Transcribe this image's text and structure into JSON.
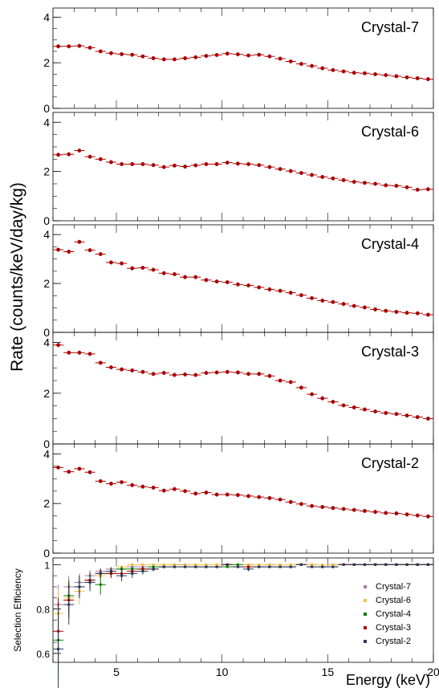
{
  "figure": {
    "ylabel": "Rate (counts/keV/day/kg)",
    "xlabel": "Energy (keV)",
    "eff_ylabel": "Selection Efficiency"
  },
  "chart_data": [
    {
      "type": "scatter",
      "title": "Crystal-7",
      "xlim": [
        2,
        20
      ],
      "ylim": [
        0,
        4.4
      ],
      "x_ticks": [],
      "y_ticks": [
        0,
        2,
        4
      ],
      "color": "#aa0000",
      "series": [
        {
          "x": [
            2.25,
            2.75,
            3.25,
            3.75,
            4.25,
            4.75,
            5.25,
            5.75,
            6.25,
            6.75,
            7.25,
            7.75,
            8.25,
            8.75,
            9.25,
            9.75,
            10.25,
            10.75,
            11.25,
            11.75,
            12.25,
            12.75,
            13.25,
            13.75,
            14.25,
            14.75,
            15.25,
            15.75,
            16.25,
            16.75,
            17.25,
            17.75,
            18.25,
            18.75,
            19.25,
            19.75
          ],
          "y": [
            2.72,
            2.72,
            2.74,
            2.66,
            2.5,
            2.42,
            2.38,
            2.35,
            2.28,
            2.2,
            2.15,
            2.15,
            2.2,
            2.24,
            2.3,
            2.34,
            2.4,
            2.37,
            2.32,
            2.35,
            2.28,
            2.18,
            2.06,
            1.95,
            1.86,
            1.76,
            1.68,
            1.62,
            1.56,
            1.54,
            1.5,
            1.46,
            1.41,
            1.36,
            1.32,
            1.28
          ]
        }
      ]
    },
    {
      "type": "scatter",
      "title": "Crystal-6",
      "xlim": [
        2,
        20
      ],
      "ylim": [
        0,
        4.4
      ],
      "x_ticks": [],
      "y_ticks": [
        0,
        2,
        4
      ],
      "color": "#aa0000",
      "series": [
        {
          "x": [
            2.25,
            2.75,
            3.25,
            3.75,
            4.25,
            4.75,
            5.25,
            5.75,
            6.25,
            6.75,
            7.25,
            7.75,
            8.25,
            8.75,
            9.25,
            9.75,
            10.25,
            10.75,
            11.25,
            11.75,
            12.25,
            12.75,
            13.25,
            13.75,
            14.25,
            14.75,
            15.25,
            15.75,
            16.25,
            16.75,
            17.25,
            17.75,
            18.25,
            18.75,
            19.25,
            19.75
          ],
          "y": [
            2.68,
            2.7,
            2.85,
            2.6,
            2.5,
            2.38,
            2.3,
            2.3,
            2.3,
            2.26,
            2.18,
            2.24,
            2.2,
            2.25,
            2.3,
            2.3,
            2.36,
            2.32,
            2.3,
            2.26,
            2.18,
            2.1,
            2.02,
            1.94,
            1.86,
            1.78,
            1.72,
            1.65,
            1.58,
            1.54,
            1.5,
            1.44,
            1.42,
            1.36,
            1.26,
            1.28
          ]
        }
      ]
    },
    {
      "type": "scatter",
      "title": "Crystal-4",
      "xlim": [
        2,
        20
      ],
      "ylim": [
        0,
        4.4
      ],
      "x_ticks": [],
      "y_ticks": [
        0,
        2,
        4
      ],
      "color": "#aa0000",
      "series": [
        {
          "x": [
            2.25,
            2.75,
            3.25,
            3.75,
            4.25,
            4.75,
            5.25,
            5.75,
            6.25,
            6.75,
            7.25,
            7.75,
            8.25,
            8.75,
            9.25,
            9.75,
            10.25,
            10.75,
            11.25,
            11.75,
            12.25,
            12.75,
            13.25,
            13.75,
            14.25,
            14.75,
            15.25,
            15.75,
            16.25,
            16.75,
            17.25,
            17.75,
            18.25,
            18.75,
            19.25,
            19.75
          ],
          "y": [
            3.38,
            3.3,
            3.7,
            3.36,
            3.2,
            2.86,
            2.82,
            2.62,
            2.64,
            2.56,
            2.42,
            2.38,
            2.26,
            2.26,
            2.14,
            2.08,
            2.05,
            1.96,
            1.92,
            1.84,
            1.76,
            1.7,
            1.62,
            1.52,
            1.4,
            1.3,
            1.24,
            1.16,
            1.08,
            1.02,
            0.94,
            0.88,
            0.84,
            0.8,
            0.78,
            0.72
          ]
        }
      ]
    },
    {
      "type": "scatter",
      "title": "Crystal-3",
      "xlim": [
        2,
        20
      ],
      "ylim": [
        0,
        4.4
      ],
      "x_ticks": [],
      "y_ticks": [
        0,
        2,
        4
      ],
      "color": "#aa0000",
      "series": [
        {
          "x": [
            2.25,
            2.75,
            3.25,
            3.75,
            4.25,
            4.75,
            5.25,
            5.75,
            6.25,
            6.75,
            7.25,
            7.75,
            8.25,
            8.75,
            9.25,
            9.75,
            10.25,
            10.75,
            11.25,
            11.75,
            12.25,
            12.75,
            13.25,
            13.75,
            14.25,
            14.75,
            15.25,
            15.75,
            16.25,
            16.75,
            17.25,
            17.75,
            18.25,
            18.75,
            19.25,
            19.75
          ],
          "y": [
            3.9,
            3.6,
            3.6,
            3.55,
            3.2,
            3.02,
            2.94,
            2.9,
            2.84,
            2.76,
            2.8,
            2.72,
            2.74,
            2.72,
            2.8,
            2.82,
            2.84,
            2.82,
            2.76,
            2.76,
            2.68,
            2.5,
            2.44,
            2.22,
            1.96,
            1.8,
            1.66,
            1.52,
            1.44,
            1.36,
            1.28,
            1.22,
            1.18,
            1.12,
            1.06,
            1.0
          ]
        }
      ]
    },
    {
      "type": "scatter",
      "title": "Crystal-2",
      "xlim": [
        2,
        20
      ],
      "ylim": [
        0,
        4.4
      ],
      "x_ticks": [],
      "y_ticks": [
        0,
        2,
        4
      ],
      "color": "#aa0000",
      "series": [
        {
          "x": [
            2.25,
            2.75,
            3.25,
            3.75,
            4.25,
            4.75,
            5.25,
            5.75,
            6.25,
            6.75,
            7.25,
            7.75,
            8.25,
            8.75,
            9.25,
            9.75,
            10.25,
            10.75,
            11.25,
            11.75,
            12.25,
            12.75,
            13.25,
            13.75,
            14.25,
            14.75,
            15.25,
            15.75,
            16.25,
            16.75,
            17.25,
            17.75,
            18.25,
            18.75,
            19.25,
            19.75
          ],
          "y": [
            3.45,
            3.28,
            3.4,
            3.26,
            2.9,
            2.8,
            2.86,
            2.74,
            2.68,
            2.64,
            2.52,
            2.58,
            2.5,
            2.4,
            2.44,
            2.36,
            2.36,
            2.34,
            2.3,
            2.26,
            2.22,
            2.16,
            2.06,
            1.98,
            1.9,
            1.86,
            1.82,
            1.78,
            1.74,
            1.7,
            1.66,
            1.62,
            1.6,
            1.56,
            1.52,
            1.48
          ]
        }
      ]
    },
    {
      "type": "scatter",
      "title": "",
      "xlabel": "Energy (keV)",
      "ylabel": "Selection Efficiency",
      "xlim": [
        2,
        20
      ],
      "ylim": [
        0.56,
        1.03
      ],
      "x_ticks": [
        5,
        10,
        15,
        20
      ],
      "y_ticks": [
        0.6,
        0.8,
        1
      ],
      "legend_position": "bottom-right",
      "series": [
        {
          "name": "Crystal-7",
          "color": "#a080a0",
          "x": [
            2.25,
            2.75,
            3.25,
            3.75,
            4.25,
            4.75,
            5.25,
            5.75,
            6.25,
            6.75,
            7.25,
            7.75,
            8.25,
            8.75,
            9.25,
            9.75,
            10.25,
            10.75,
            11.25,
            11.75,
            12.25,
            12.75,
            13.25,
            13.75,
            14.25,
            14.75,
            15.25,
            15.75,
            16.25,
            16.75,
            17.25,
            17.75,
            18.25,
            18.75,
            19.25,
            19.75
          ],
          "y": [
            0.82,
            0.9,
            0.92,
            0.95,
            0.97,
            0.98,
            0.98,
            0.99,
            0.99,
            0.99,
            0.99,
            1.0,
            1.0,
            0.99,
            0.99,
            0.99,
            1.0,
            0.99,
            1.0,
            0.99,
            1.0,
            0.99,
            0.99,
            1.0,
            1.0,
            0.99,
            1.0,
            1.0,
            1.0,
            1.0,
            1.0,
            1.0,
            1.0,
            1.0,
            1.0,
            1.0
          ]
        },
        {
          "name": "Crystal-6",
          "color": "#f0c040",
          "x": [
            2.25,
            2.75,
            3.25,
            3.75,
            4.25,
            4.75,
            5.25,
            5.75,
            6.25,
            6.75,
            7.25,
            7.75,
            8.25,
            8.75,
            9.25,
            9.75,
            10.25,
            10.75,
            11.25,
            11.75,
            12.25,
            12.75,
            13.25,
            13.75,
            14.25,
            14.75,
            15.25,
            15.75,
            16.25,
            16.75,
            17.25,
            17.75,
            18.25,
            18.75,
            19.25,
            19.75
          ],
          "y": [
            0.78,
            0.85,
            0.88,
            0.92,
            0.95,
            0.97,
            0.99,
            1.0,
            1.0,
            1.0,
            1.0,
            1.0,
            1.0,
            1.0,
            1.0,
            1.0,
            1.0,
            1.0,
            1.0,
            1.0,
            1.0,
            1.0,
            1.0,
            1.0,
            1.0,
            1.0,
            1.0,
            1.0,
            1.0,
            1.0,
            1.0,
            1.0,
            1.0,
            1.0,
            1.0,
            1.0
          ]
        },
        {
          "name": "Crystal-4",
          "color": "#008000",
          "x": [
            2.25,
            2.75,
            3.25,
            3.75,
            4.25,
            4.75,
            5.25,
            5.75,
            6.25,
            6.75,
            7.25,
            7.75,
            8.25,
            8.75,
            9.25,
            9.75,
            10.25,
            10.75,
            11.25,
            11.75,
            12.25,
            12.75,
            13.25,
            13.75,
            14.25,
            14.75,
            15.25,
            15.75,
            16.25,
            16.75,
            17.25,
            17.75,
            18.25,
            18.75,
            19.25,
            19.75
          ],
          "y": [
            0.66,
            0.86,
            0.9,
            0.93,
            0.91,
            0.96,
            0.98,
            0.98,
            0.98,
            0.99,
            0.99,
            0.99,
            0.99,
            0.99,
            0.99,
            0.99,
            0.99,
            1.0,
            0.99,
            0.99,
            0.99,
            0.99,
            0.99,
            1.0,
            0.99,
            0.99,
            0.99,
            1.0,
            1.0,
            1.0,
            1.0,
            1.0,
            1.0,
            1.0,
            1.0,
            1.0
          ]
        },
        {
          "name": "Crystal-3",
          "color": "#aa0000",
          "x": [
            2.25,
            2.75,
            3.25,
            3.75,
            4.25,
            4.75,
            5.25,
            5.75,
            6.25,
            6.75,
            7.25,
            7.75,
            8.25,
            8.75,
            9.25,
            9.75,
            10.25,
            10.75,
            11.25,
            11.75,
            12.25,
            12.75,
            13.25,
            13.75,
            14.25,
            14.75,
            15.25,
            15.75,
            16.25,
            16.75,
            17.25,
            17.75,
            18.25,
            18.75,
            19.25,
            19.75
          ],
          "y": [
            0.7,
            0.84,
            0.9,
            0.93,
            0.96,
            0.96,
            0.96,
            0.97,
            0.98,
            0.98,
            0.99,
            0.99,
            0.99,
            0.99,
            0.99,
            0.99,
            1.0,
            0.99,
            0.99,
            0.99,
            0.99,
            0.99,
            0.99,
            1.0,
            0.99,
            0.99,
            0.99,
            1.0,
            1.0,
            1.0,
            1.0,
            1.0,
            1.0,
            1.0,
            1.0,
            1.0
          ]
        },
        {
          "name": "Crystal-2",
          "color": "#2a3a5a",
          "x": [
            2.25,
            2.75,
            3.25,
            3.75,
            4.25,
            4.75,
            5.25,
            5.75,
            6.25,
            6.75,
            7.25,
            7.75,
            8.25,
            8.75,
            9.25,
            9.75,
            10.25,
            10.75,
            11.25,
            11.75,
            12.25,
            12.75,
            13.25,
            13.75,
            14.25,
            14.75,
            15.25,
            15.75,
            16.25,
            16.75,
            17.25,
            17.75,
            18.25,
            18.75,
            19.25,
            19.75
          ],
          "y": [
            0.62,
            0.82,
            0.9,
            0.92,
            0.96,
            0.97,
            0.95,
            0.96,
            0.97,
            0.98,
            0.99,
            0.99,
            0.99,
            0.99,
            0.99,
            0.99,
            1.0,
            0.99,
            0.98,
            0.99,
            0.99,
            0.99,
            0.99,
            1.0,
            0.99,
            0.99,
            0.99,
            1.0,
            1.0,
            1.0,
            1.0,
            1.0,
            1.0,
            1.0,
            1.0,
            1.0
          ]
        }
      ]
    }
  ]
}
